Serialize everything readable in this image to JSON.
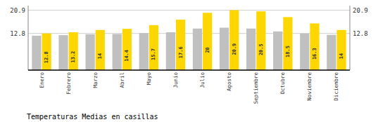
{
  "chart_data": {
    "type": "bar",
    "title": "Temperaturas Medias en casillas",
    "categories": [
      "Enero",
      "Febrero",
      "Marzo",
      "Abril",
      "Mayo",
      "Junio",
      "Julio",
      "Agosto",
      "Septiembre",
      "Octubre",
      "Noviembre",
      "Diciembre"
    ],
    "series": [
      {
        "color": "#C0C0C0",
        "values": [
          12.0,
          12.2,
          12.5,
          12.6,
          12.9,
          13.2,
          14.5,
          14.8,
          14.5,
          13.5,
          12.8,
          12.3
        ]
      },
      {
        "color": "#FFD700",
        "data_labels": true,
        "values": [
          12.8,
          13.2,
          14.0,
          14.4,
          15.7,
          17.6,
          20.0,
          20.9,
          20.5,
          18.5,
          16.3,
          14.0
        ]
      }
    ],
    "ylim": [
      0,
      22.5
    ],
    "yticks": [
      12.8,
      20.9
    ],
    "y2lim": [
      0,
      22.5
    ],
    "y2ticks": [
      12.8,
      20.9
    ],
    "grid": true
  }
}
